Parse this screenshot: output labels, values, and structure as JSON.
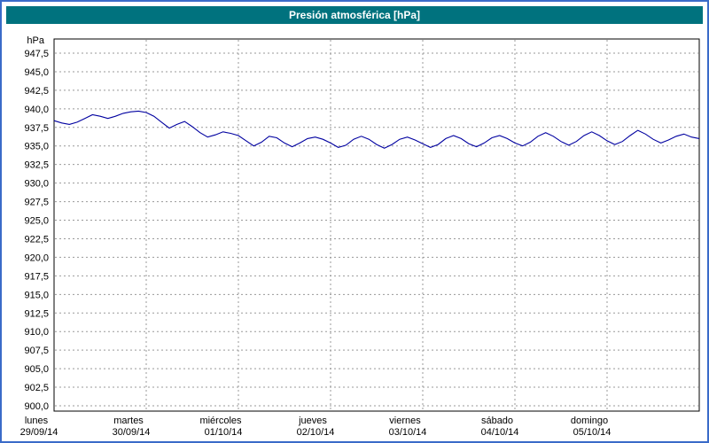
{
  "window": {
    "title": "Presión atmosférica [hPa]"
  },
  "colors": {
    "frame_border": "#3a6bc8",
    "title_bar_bg": "#00727e",
    "title_text": "#ffffff",
    "plot_bg": "#ffffff",
    "plot_border": "#000000",
    "grid": "#999999",
    "line": "#0000a0"
  },
  "chart_data": {
    "type": "line",
    "title": "Presión atmosférica [hPa]",
    "unit_label": "hPa",
    "ylabel": "hPa",
    "xlabel": "",
    "grid": {
      "style": "dashed",
      "color": "#999999",
      "on": true
    },
    "legend": "none",
    "y_axis": {
      "min": 900.0,
      "max": 947.5,
      "step": 2.5,
      "decimal_separator": ",",
      "tick_format": "one_decimal_comma"
    },
    "x_axis": {
      "days": [
        {
          "name": "lunes",
          "date": "29/09/14"
        },
        {
          "name": "martes",
          "date": "30/09/14"
        },
        {
          "name": "miércoles",
          "date": "01/10/14"
        },
        {
          "name": "jueves",
          "date": "02/10/14"
        },
        {
          "name": "viernes",
          "date": "03/10/14"
        },
        {
          "name": "sábado",
          "date": "04/10/14"
        },
        {
          "name": "domingo",
          "date": "05/10/14"
        }
      ]
    },
    "series": [
      {
        "name": "Presión atmosférica",
        "color": "#0000a0",
        "sample_interval_hours": 2,
        "values": [
          938.4,
          938.1,
          937.9,
          938.2,
          938.7,
          939.2,
          939.0,
          938.7,
          939.0,
          939.4,
          939.6,
          939.7,
          939.5,
          939.0,
          938.2,
          937.4,
          937.9,
          938.3,
          937.6,
          936.8,
          936.2,
          936.5,
          936.9,
          936.7,
          936.4,
          935.7,
          935.0,
          935.5,
          936.3,
          936.1,
          935.4,
          934.9,
          935.4,
          936.0,
          936.2,
          935.9,
          935.4,
          934.8,
          935.1,
          935.9,
          936.3,
          935.9,
          935.2,
          934.7,
          935.2,
          935.9,
          936.2,
          935.8,
          935.3,
          934.8,
          935.2,
          936.0,
          936.4,
          936.0,
          935.3,
          934.9,
          935.4,
          936.1,
          936.4,
          936.0,
          935.4,
          935.0,
          935.5,
          936.3,
          936.8,
          936.3,
          935.6,
          935.1,
          935.6,
          936.4,
          936.9,
          936.4,
          935.7,
          935.2,
          935.6,
          936.4,
          937.1,
          936.6,
          935.9,
          935.4,
          935.8,
          936.3,
          936.6,
          936.2,
          936.0
        ]
      }
    ]
  }
}
